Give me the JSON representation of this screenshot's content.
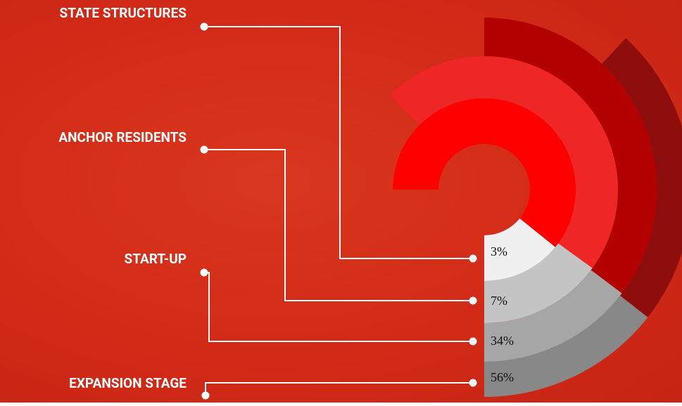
{
  "segments": [
    {
      "label": "STATE STRUCTURES",
      "percent": "3%"
    },
    {
      "label": "ANCHOR RESIDENTS",
      "percent": "7%"
    },
    {
      "label": "START-UP",
      "percent": "34%"
    },
    {
      "label": "EXPANSION STAGE",
      "percent": "56%"
    }
  ]
}
